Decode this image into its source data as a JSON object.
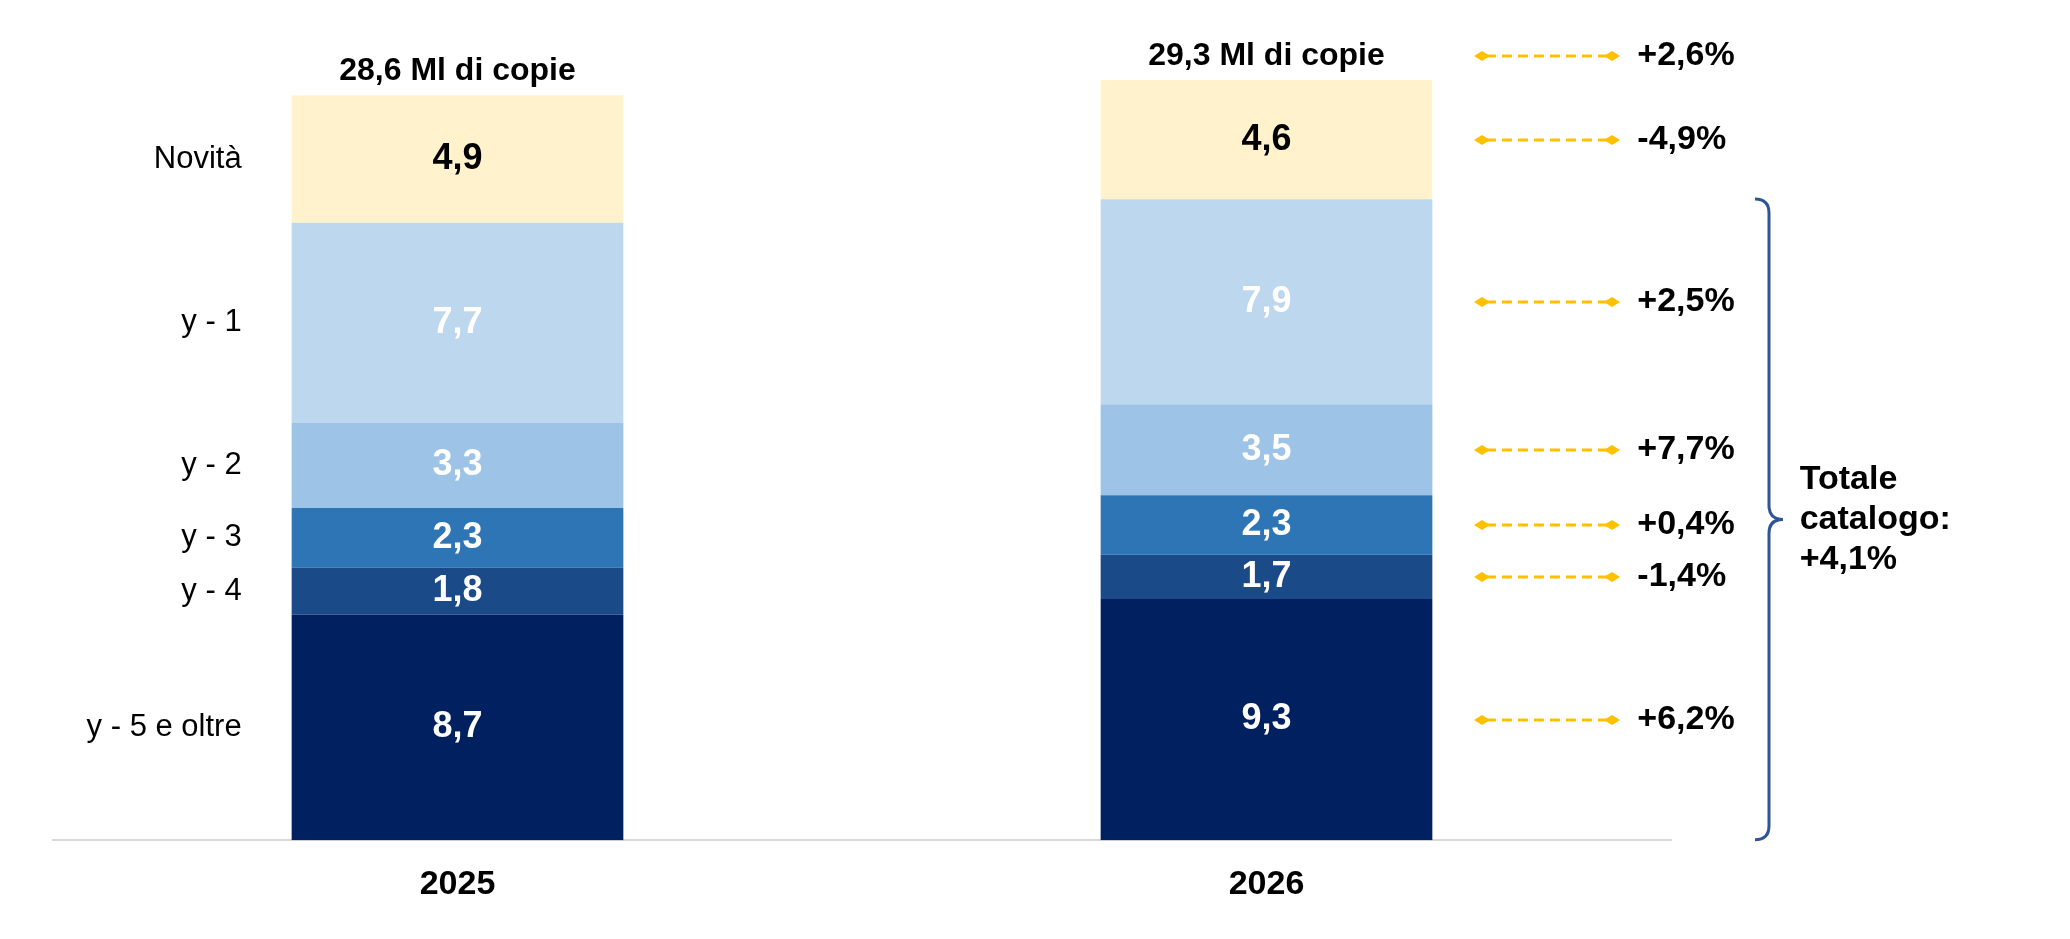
{
  "chart_data": {
    "type": "bar",
    "stacked": true,
    "categories": [
      "2025",
      "2026"
    ],
    "series": [
      {
        "name": "y - 5 e oltre",
        "color": "#002060",
        "values": [
          8.7,
          9.3
        ],
        "value_labels": [
          "8,7",
          "9,3"
        ]
      },
      {
        "name": "y - 4",
        "color": "#1a4a87",
        "values": [
          1.8,
          1.7
        ],
        "value_labels": [
          "1,8",
          "1,7"
        ]
      },
      {
        "name": "y - 3",
        "color": "#2e75b6",
        "values": [
          2.3,
          2.3
        ],
        "value_labels": [
          "2,3",
          "2,3"
        ]
      },
      {
        "name": "y - 2",
        "color": "#9dc3e6",
        "values": [
          3.3,
          3.5
        ],
        "value_labels": [
          "3,3",
          "3,5"
        ]
      },
      {
        "name": "y - 1",
        "color": "#bdd7ee",
        "values": [
          7.7,
          7.9
        ],
        "value_labels": [
          "7,7",
          "7,9"
        ]
      },
      {
        "name": "Novità",
        "color": "#fff2cc",
        "values": [
          4.9,
          4.6
        ],
        "value_labels": [
          "4,9",
          "4,6"
        ]
      }
    ],
    "totals": [
      "28,6 Ml di copie",
      "29,3 Ml di copie"
    ],
    "annotations": [
      "+2,6%",
      "-4,9%",
      "+2,5%",
      "+7,7%",
      "+0,4%",
      "-1,4%",
      "+6,2%",
      "Totale catalogo: +4,1%"
    ],
    "legend": false,
    "grid": false
  }
}
